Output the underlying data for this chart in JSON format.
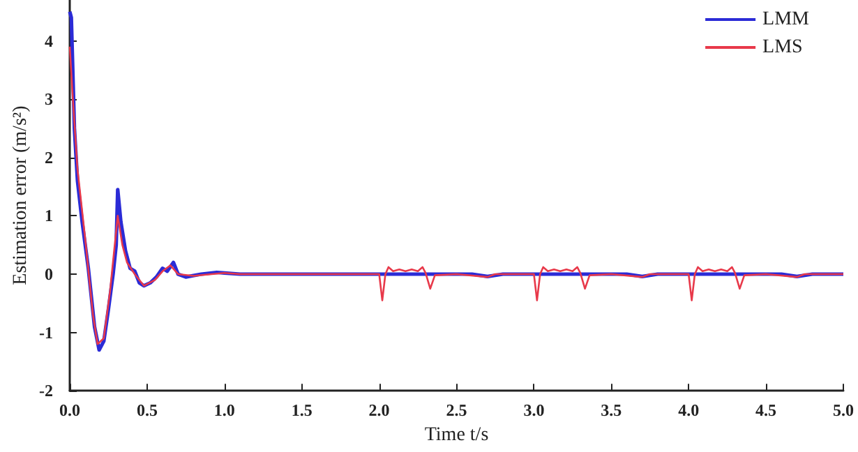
{
  "chart_data": {
    "type": "line",
    "xlabel": "Time t/s",
    "ylabel": "Estimation error (m/s²)",
    "xlim": [
      0,
      5
    ],
    "ylim": [
      -2,
      4.7
    ],
    "xticks": [
      {
        "value": 0,
        "label": "0.0"
      },
      {
        "value": 0.5,
        "label": "0.5"
      },
      {
        "value": 1,
        "label": "1.0"
      },
      {
        "value": 1.5,
        "label": "1.5"
      },
      {
        "value": 2,
        "label": "2.0"
      },
      {
        "value": 2.5,
        "label": "2.5"
      },
      {
        "value": 3,
        "label": "3.0"
      },
      {
        "value": 3.5,
        "label": "3.5"
      },
      {
        "value": 4,
        "label": "4.0"
      },
      {
        "value": 4.5,
        "label": "4.5"
      },
      {
        "value": 5,
        "label": "5.0"
      }
    ],
    "yticks": [
      -2,
      -1,
      0,
      1,
      2,
      3,
      4
    ],
    "grid": false,
    "legend": "top right",
    "marker": "none",
    "line_style": "solid",
    "series": [
      {
        "name": "LMM",
        "color": "#2b2bd6",
        "x": [
          0,
          0.01,
          0.03,
          0.05,
          0.08,
          0.12,
          0.16,
          0.19,
          0.22,
          0.25,
          0.28,
          0.3,
          0.31,
          0.33,
          0.36,
          0.39,
          0.42,
          0.45,
          0.48,
          0.52,
          0.56,
          0.6,
          0.63,
          0.67,
          0.7,
          0.75,
          0.85,
          0.95,
          1.0,
          1.1,
          2.6,
          2.7,
          2.8,
          3.6,
          3.7,
          3.8,
          4.6,
          4.7,
          4.8,
          5.0
        ],
        "values": [
          4.5,
          4.4,
          2.5,
          1.6,
          0.9,
          0.1,
          -0.9,
          -1.3,
          -1.15,
          -0.6,
          0,
          0.5,
          1.45,
          0.9,
          0.4,
          0.1,
          0.05,
          -0.15,
          -0.2,
          -0.15,
          -0.05,
          0.1,
          0.05,
          0.2,
          0,
          -0.05,
          0,
          0.03,
          0.02,
          0,
          0,
          -0.04,
          0,
          0,
          -0.04,
          0,
          0,
          -0.04,
          0,
          0
        ]
      },
      {
        "name": "LMS",
        "color": "#e8394a",
        "x": [
          0,
          0.02,
          0.05,
          0.1,
          0.15,
          0.18,
          0.22,
          0.26,
          0.31,
          0.34,
          0.37,
          0.42,
          0.48,
          0.55,
          0.6,
          0.65,
          0.7,
          0.8,
          1.0,
          1.1,
          2.0,
          2.02,
          2.04,
          2.06,
          2.09,
          2.13,
          2.17,
          2.21,
          2.25,
          2.28,
          2.3,
          2.33,
          2.36,
          2.5,
          2.7,
          2.75,
          3.0,
          3.02,
          3.04,
          3.06,
          3.09,
          3.13,
          3.17,
          3.21,
          3.25,
          3.28,
          3.3,
          3.33,
          3.36,
          3.5,
          3.7,
          3.75,
          4.0,
          4.02,
          4.04,
          4.06,
          4.09,
          4.13,
          4.17,
          4.21,
          4.25,
          4.28,
          4.3,
          4.33,
          4.36,
          4.5,
          4.7,
          4.75,
          5.0
        ],
        "values": [
          3.9,
          3.0,
          1.8,
          0.6,
          -0.7,
          -1.2,
          -1.1,
          -0.3,
          1.0,
          0.5,
          0.2,
          0,
          -0.2,
          -0.1,
          0.05,
          0.15,
          0,
          -0.03,
          0.02,
          0,
          0,
          -0.45,
          0,
          0.12,
          0.05,
          0.08,
          0.05,
          0.08,
          0.05,
          0.12,
          0.02,
          -0.25,
          -0.02,
          0,
          -0.05,
          0,
          0,
          -0.45,
          0,
          0.12,
          0.05,
          0.08,
          0.05,
          0.08,
          0.05,
          0.12,
          0.02,
          -0.25,
          -0.02,
          0,
          -0.05,
          0,
          0,
          -0.45,
          0,
          0.12,
          0.05,
          0.08,
          0.05,
          0.08,
          0.05,
          0.12,
          0.02,
          -0.25,
          -0.02,
          0,
          -0.05,
          0,
          0
        ]
      }
    ]
  }
}
